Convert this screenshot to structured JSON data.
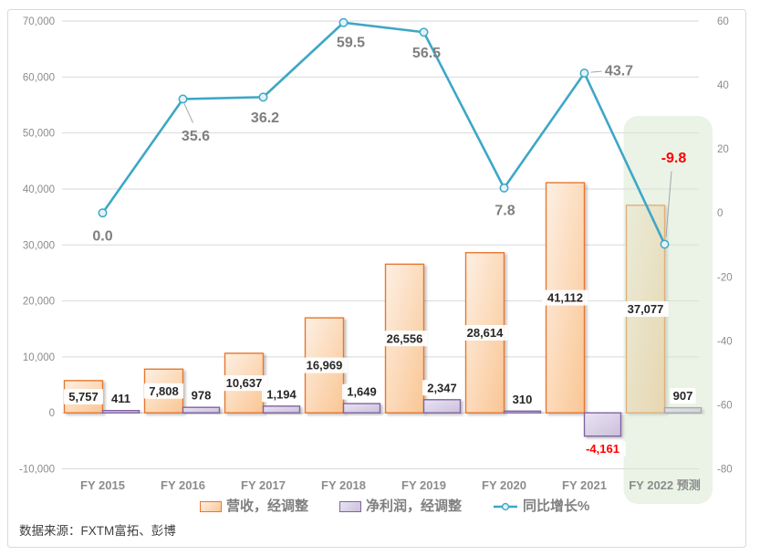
{
  "chart_data": {
    "type": "combo-bar-line",
    "title": "",
    "categories": [
      "FY 2015",
      "FY 2016",
      "FY 2017",
      "FY 2018",
      "FY 2019",
      "FY 2020",
      "FY 2021",
      "FY 2022 预测"
    ],
    "series": [
      {
        "name": "营收，经调整",
        "type": "bar",
        "axis": "left",
        "values": [
          5757,
          7808,
          10637,
          16969,
          26556,
          28614,
          41112,
          37077
        ],
        "labels": [
          "5,757",
          "7,808",
          "10,637",
          "16,969",
          "26,556",
          "28,614",
          "41,112",
          "37,077"
        ]
      },
      {
        "name": "净利润，经调整",
        "type": "bar",
        "axis": "left",
        "values": [
          411,
          978,
          1194,
          1649,
          2347,
          310,
          -4161,
          907
        ],
        "labels": [
          "411",
          "978",
          "1,194",
          "1,649",
          "2,347",
          "310",
          "-4,161",
          "907"
        ]
      },
      {
        "name": "同比增长%",
        "type": "line",
        "axis": "right",
        "values": [
          0.0,
          35.6,
          36.2,
          59.5,
          56.5,
          7.8,
          43.7,
          -9.8
        ],
        "labels": [
          "0.0",
          "35.6",
          "36.2",
          "59.5",
          "56.5",
          "7.8",
          "43.7",
          "-9.8"
        ]
      }
    ],
    "left_axis": {
      "min": -10000,
      "max": 70000,
      "tick_values": [
        70000,
        60000,
        50000,
        40000,
        30000,
        20000,
        10000,
        0,
        -10000
      ],
      "tick_labels": [
        "70,000",
        "60,000",
        "50,000",
        "40,000",
        "30,000",
        "20,000",
        "10,000",
        "0",
        "-10,000"
      ]
    },
    "right_axis": {
      "min": -80,
      "max": 60,
      "tick_values": [
        60,
        40,
        20,
        0,
        -20,
        -40,
        -60,
        -80
      ],
      "tick_labels": [
        "60",
        "40",
        "20",
        "0",
        "-20",
        "-40",
        "-60",
        "-80"
      ]
    },
    "grid": true,
    "legend_position": "bottom",
    "highlight": {
      "category": "FY 2022 预测",
      "note": "forecast column highlight"
    }
  },
  "colors": {
    "revenue_border": "#E8772E",
    "revenue_fill_light": "#FDF0E4",
    "revenue_fill_dark": "#FAC694",
    "profit_border": "#8064A2",
    "profit_fill_light": "#E9E4F3",
    "profit_fill_dark": "#CBBFDB",
    "growth_line": "#3EA7C6",
    "marker_fill": "#E5F3F8",
    "grid_line": "#D9D9D9",
    "frame_border": "#D9D9D9",
    "axis_text": "#8C8C8C",
    "bar_label_text": "#262626",
    "growth_label_text": "#7F7F7F",
    "negative_text": "#FF0000",
    "highlight_fill": "#D5E7CD",
    "leader_line": "#A6A6A6"
  },
  "source": {
    "text": "数据来源：FXTM富拓、彭博"
  }
}
